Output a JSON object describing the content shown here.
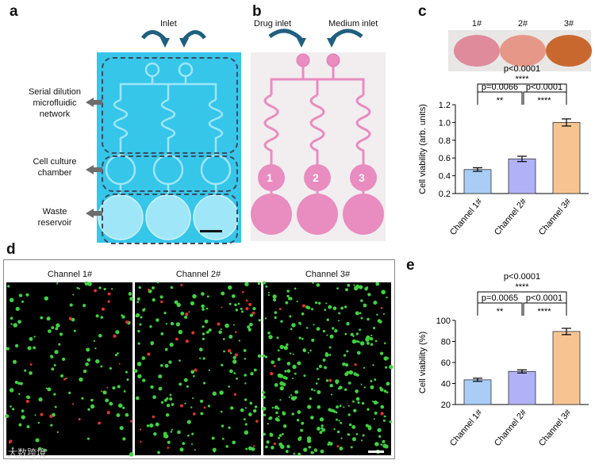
{
  "panels": {
    "a": {
      "label": "a",
      "inlet": "Inlet",
      "side_labels": [
        "Serial dilution microfluidic network",
        "Cell culture chamber",
        "Waste reservoir"
      ]
    },
    "b": {
      "label": "b",
      "drug_inlet": "Drug inlet",
      "medium_inlet": "Medium inlet",
      "chamber_numbers": [
        "1",
        "2",
        "3"
      ]
    },
    "c": {
      "label": "c",
      "dish_labels": [
        "1#",
        "2#",
        "3#"
      ]
    },
    "d": {
      "label": "d",
      "channel_titles": [
        "Channel 1#",
        "Channel 2#",
        "Channel 3#"
      ]
    },
    "e": {
      "label": "e"
    }
  },
  "colors": {
    "chip_blue": "#35c6ea",
    "chip_pink": "#e98cc0",
    "bar1": "#a9cdf7",
    "bar2": "#b0b1f6",
    "bar3": "#f7c491",
    "green": "#3fd23f",
    "red": "#e0342c"
  },
  "watermark": "大数跨境",
  "chart_data": [
    {
      "type": "bar",
      "categories": [
        "Channel 1#",
        "Channel 2#",
        "Channel 3#"
      ],
      "values": [
        0.47,
        0.59,
        1.0
      ],
      "errors": [
        0.02,
        0.03,
        0.04
      ],
      "ylabel": "Cell viability (arb. units)",
      "ylim": [
        0.2,
        1.2
      ],
      "yticks": [
        "0.2",
        "0.4",
        "0.6",
        "0.8",
        "1.0",
        "1.2"
      ],
      "annotations": {
        "top": "p<0.0001",
        "top_stars": "****",
        "left": "p=0.0066",
        "left_stars": "**",
        "right": "p<0.0001",
        "right_stars": "****"
      }
    },
    {
      "type": "bar",
      "categories": [
        "Channel 1#",
        "Channel 2#",
        "Channel 3#"
      ],
      "values": [
        43.5,
        51.5,
        89.5
      ],
      "errors": [
        1.5,
        1.5,
        3
      ],
      "ylabel": "Cell viability (%)",
      "ylim": [
        20,
        100
      ],
      "yticks": [
        "20",
        "40",
        "60",
        "80",
        "100"
      ],
      "annotations": {
        "top": "p<0.0001",
        "top_stars": "****",
        "left": "p=0.0065",
        "left_stars": "**",
        "right": "p<0.0001",
        "right_stars": "****"
      }
    }
  ]
}
